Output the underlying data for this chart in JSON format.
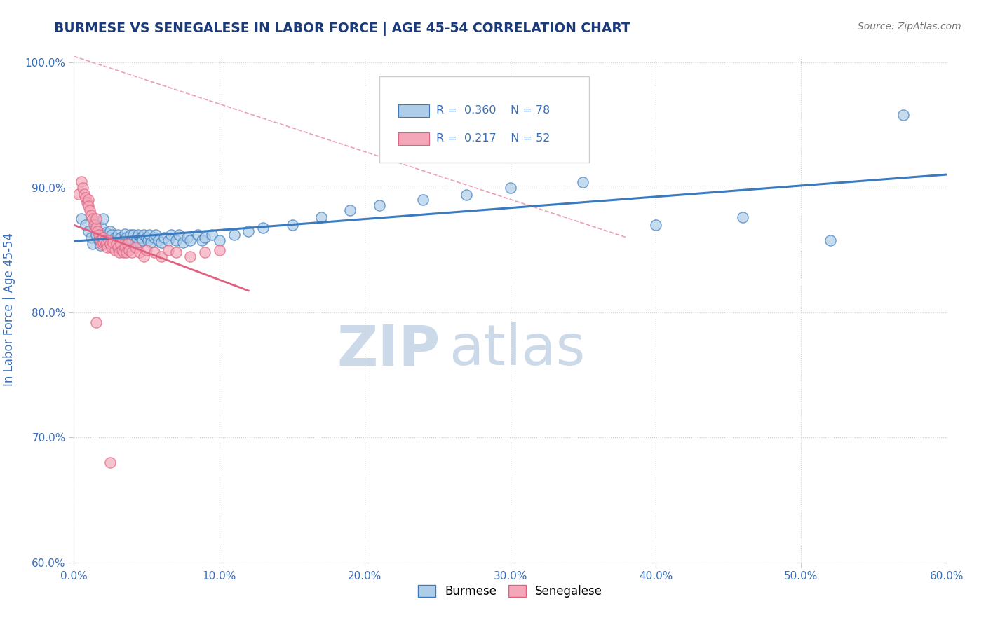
{
  "title": "BURMESE VS SENEGALESE IN LABOR FORCE | AGE 45-54 CORRELATION CHART",
  "source_text": "Source: ZipAtlas.com",
  "ylabel": "In Labor Force | Age 45-54",
  "xlim": [
    0.0,
    0.6
  ],
  "ylim": [
    0.6,
    1.005
  ],
  "xtick_vals": [
    0.0,
    0.1,
    0.2,
    0.3,
    0.4,
    0.5,
    0.6
  ],
  "xtick_labels": [
    "0.0%",
    "10.0%",
    "20.0%",
    "30.0%",
    "40.0%",
    "50.0%",
    "60.0%"
  ],
  "ytick_vals": [
    0.6,
    0.7,
    0.8,
    0.9,
    1.0
  ],
  "ytick_labels": [
    "60.0%",
    "70.0%",
    "80.0%",
    "90.0%",
    "100.0%"
  ],
  "burmese_color": "#aecde8",
  "senegalese_color": "#f4a7b9",
  "burmese_line_color": "#3a7abf",
  "senegalese_line_color": "#e06080",
  "R_burmese": 0.36,
  "N_burmese": 78,
  "R_senegalese": 0.217,
  "N_senegalese": 52,
  "burmese_x": [
    0.005,
    0.008,
    0.01,
    0.012,
    0.013,
    0.015,
    0.015,
    0.017,
    0.018,
    0.019,
    0.02,
    0.02,
    0.021,
    0.022,
    0.023,
    0.024,
    0.025,
    0.025,
    0.026,
    0.027,
    0.028,
    0.029,
    0.03,
    0.03,
    0.031,
    0.032,
    0.033,
    0.035,
    0.035,
    0.036,
    0.037,
    0.038,
    0.039,
    0.04,
    0.041,
    0.042,
    0.043,
    0.044,
    0.045,
    0.046,
    0.047,
    0.048,
    0.05,
    0.051,
    0.052,
    0.053,
    0.055,
    0.056,
    0.058,
    0.06,
    0.062,
    0.065,
    0.067,
    0.07,
    0.072,
    0.075,
    0.078,
    0.08,
    0.085,
    0.088,
    0.09,
    0.095,
    0.1,
    0.11,
    0.12,
    0.13,
    0.15,
    0.17,
    0.19,
    0.21,
    0.24,
    0.27,
    0.3,
    0.35,
    0.4,
    0.46,
    0.52,
    0.57
  ],
  "burmese_y": [
    0.875,
    0.87,
    0.865,
    0.86,
    0.855,
    0.862,
    0.87,
    0.858,
    0.854,
    0.868,
    0.862,
    0.875,
    0.858,
    0.864,
    0.856,
    0.86,
    0.858,
    0.865,
    0.862,
    0.856,
    0.86,
    0.857,
    0.858,
    0.862,
    0.856,
    0.86,
    0.855,
    0.863,
    0.858,
    0.86,
    0.855,
    0.858,
    0.862,
    0.857,
    0.862,
    0.856,
    0.86,
    0.862,
    0.856,
    0.86,
    0.858,
    0.862,
    0.86,
    0.858,
    0.862,
    0.856,
    0.86,
    0.862,
    0.858,
    0.856,
    0.86,
    0.858,
    0.862,
    0.858,
    0.862,
    0.856,
    0.86,
    0.858,
    0.862,
    0.858,
    0.86,
    0.862,
    0.858,
    0.862,
    0.865,
    0.868,
    0.87,
    0.876,
    0.882,
    0.886,
    0.89,
    0.894,
    0.9,
    0.904,
    0.87,
    0.876,
    0.858,
    0.958
  ],
  "senegalese_x": [
    0.003,
    0.005,
    0.006,
    0.007,
    0.008,
    0.009,
    0.01,
    0.01,
    0.011,
    0.012,
    0.013,
    0.014,
    0.015,
    0.015,
    0.016,
    0.017,
    0.018,
    0.019,
    0.02,
    0.02,
    0.021,
    0.022,
    0.023,
    0.024,
    0.025,
    0.026,
    0.027,
    0.028,
    0.029,
    0.03,
    0.031,
    0.032,
    0.033,
    0.034,
    0.035,
    0.036,
    0.037,
    0.038,
    0.04,
    0.042,
    0.045,
    0.048,
    0.05,
    0.055,
    0.06,
    0.065,
    0.07,
    0.08,
    0.09,
    0.1,
    0.015,
    0.025
  ],
  "senegalese_y": [
    0.895,
    0.905,
    0.9,
    0.895,
    0.892,
    0.888,
    0.89,
    0.885,
    0.882,
    0.878,
    0.875,
    0.87,
    0.868,
    0.875,
    0.865,
    0.862,
    0.858,
    0.855,
    0.86,
    0.856,
    0.858,
    0.855,
    0.852,
    0.858,
    0.855,
    0.852,
    0.856,
    0.85,
    0.855,
    0.852,
    0.848,
    0.855,
    0.85,
    0.848,
    0.852,
    0.848,
    0.855,
    0.85,
    0.848,
    0.852,
    0.848,
    0.845,
    0.85,
    0.848,
    0.845,
    0.85,
    0.848,
    0.845,
    0.848,
    0.85,
    0.792,
    0.68
  ],
  "watermark_color": "#ccd9e8",
  "title_color": "#1a3a7a",
  "axis_color": "#3a6db5",
  "tick_color": "#3a6db5"
}
